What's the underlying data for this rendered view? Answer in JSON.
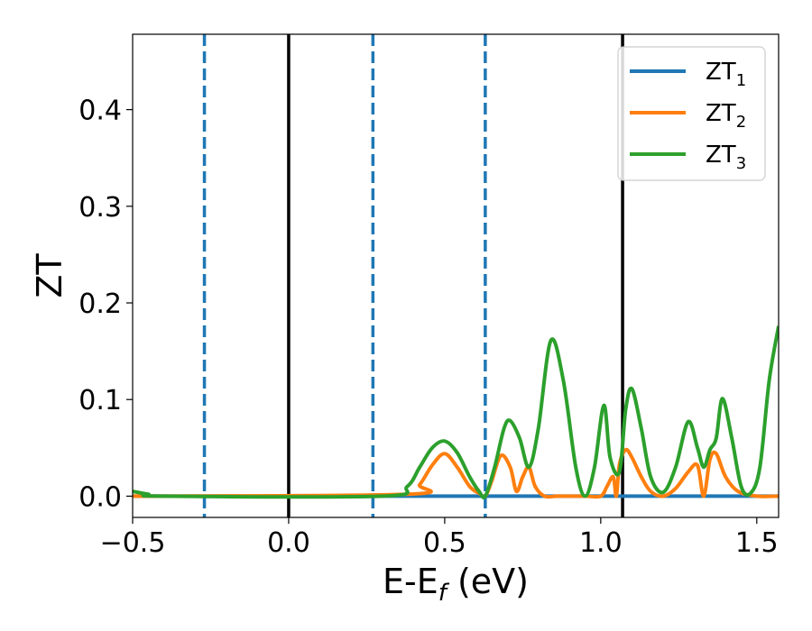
{
  "chart_data": {
    "type": "line",
    "xlabel": "E-E",
    "xlabel_sub": "f",
    "xlabel_unit": " (eV)",
    "ylabel": "ZT",
    "xlim": [
      -0.5,
      1.57
    ],
    "ylim": [
      -0.022,
      0.478
    ],
    "xticks": [
      -0.5,
      0.0,
      0.5,
      1.0,
      1.5
    ],
    "xtick_labels": [
      "−0.5",
      "0.0",
      "0.5",
      "1.0",
      "1.5"
    ],
    "yticks": [
      0.0,
      0.1,
      0.2,
      0.3,
      0.4
    ],
    "ytick_labels": [
      "0.0",
      "0.1",
      "0.2",
      "0.3",
      "0.4"
    ],
    "grid": false,
    "legend_position": "top-right",
    "vlines_solid": [
      0.0,
      1.07
    ],
    "vlines_dashed": [
      -0.27,
      0.27,
      0.63
    ],
    "vline_solid_color": "#000000",
    "vline_dashed_color": "#1f77b4",
    "series": [
      {
        "name": "ZT",
        "name_sub": "1",
        "color": "#1f77b4",
        "x": [
          -0.5,
          1.57
        ],
        "y": [
          0.0,
          0.0
        ]
      },
      {
        "name": "ZT",
        "name_sub": "2",
        "color": "#ff7f0e",
        "x": [
          -0.5,
          0.38,
          0.42,
          0.46,
          0.5,
          0.54,
          0.58,
          0.61,
          0.63,
          0.65,
          0.68,
          0.71,
          0.73,
          0.75,
          0.77,
          0.79,
          0.82,
          0.86,
          0.9,
          0.95,
          1.0,
          1.02,
          1.04,
          1.05,
          1.06,
          1.08,
          1.1,
          1.13,
          1.16,
          1.2,
          1.24,
          1.28,
          1.31,
          1.33,
          1.35,
          1.37,
          1.4,
          1.44,
          1.5,
          1.57
        ],
        "y": [
          0.0,
          0.002,
          0.012,
          0.032,
          0.044,
          0.03,
          0.01,
          0.003,
          0.0,
          0.015,
          0.042,
          0.03,
          0.005,
          0.02,
          0.03,
          0.01,
          0.0,
          0.0,
          0.0,
          0.0,
          0.0,
          0.01,
          0.02,
          0.0,
          0.033,
          0.048,
          0.04,
          0.02,
          0.005,
          0.0,
          0.008,
          0.025,
          0.032,
          0.0,
          0.038,
          0.044,
          0.02,
          0.005,
          0.0,
          0.0
        ]
      },
      {
        "name": "ZT",
        "name_sub": "3",
        "color": "#2ca02c",
        "x": [
          -0.5,
          -0.45,
          -0.4,
          0.3,
          0.38,
          0.42,
          0.46,
          0.5,
          0.54,
          0.58,
          0.61,
          0.63,
          0.66,
          0.69,
          0.71,
          0.74,
          0.77,
          0.8,
          0.84,
          0.88,
          0.92,
          0.95,
          0.98,
          1.01,
          1.03,
          1.06,
          1.08,
          1.1,
          1.13,
          1.16,
          1.2,
          1.24,
          1.28,
          1.31,
          1.33,
          1.35,
          1.37,
          1.39,
          1.42,
          1.45,
          1.48,
          1.51,
          1.54,
          1.57
        ],
        "y": [
          0.005,
          0.002,
          0.0,
          0.0,
          0.01,
          0.03,
          0.05,
          0.057,
          0.045,
          0.02,
          0.005,
          0.0,
          0.03,
          0.07,
          0.078,
          0.06,
          0.03,
          0.07,
          0.161,
          0.12,
          0.03,
          0.0,
          0.03,
          0.094,
          0.04,
          0.025,
          0.09,
          0.111,
          0.07,
          0.02,
          0.004,
          0.03,
          0.077,
          0.05,
          0.03,
          0.048,
          0.06,
          0.101,
          0.06,
          0.01,
          0.003,
          0.03,
          0.12,
          0.176
        ]
      }
    ]
  }
}
